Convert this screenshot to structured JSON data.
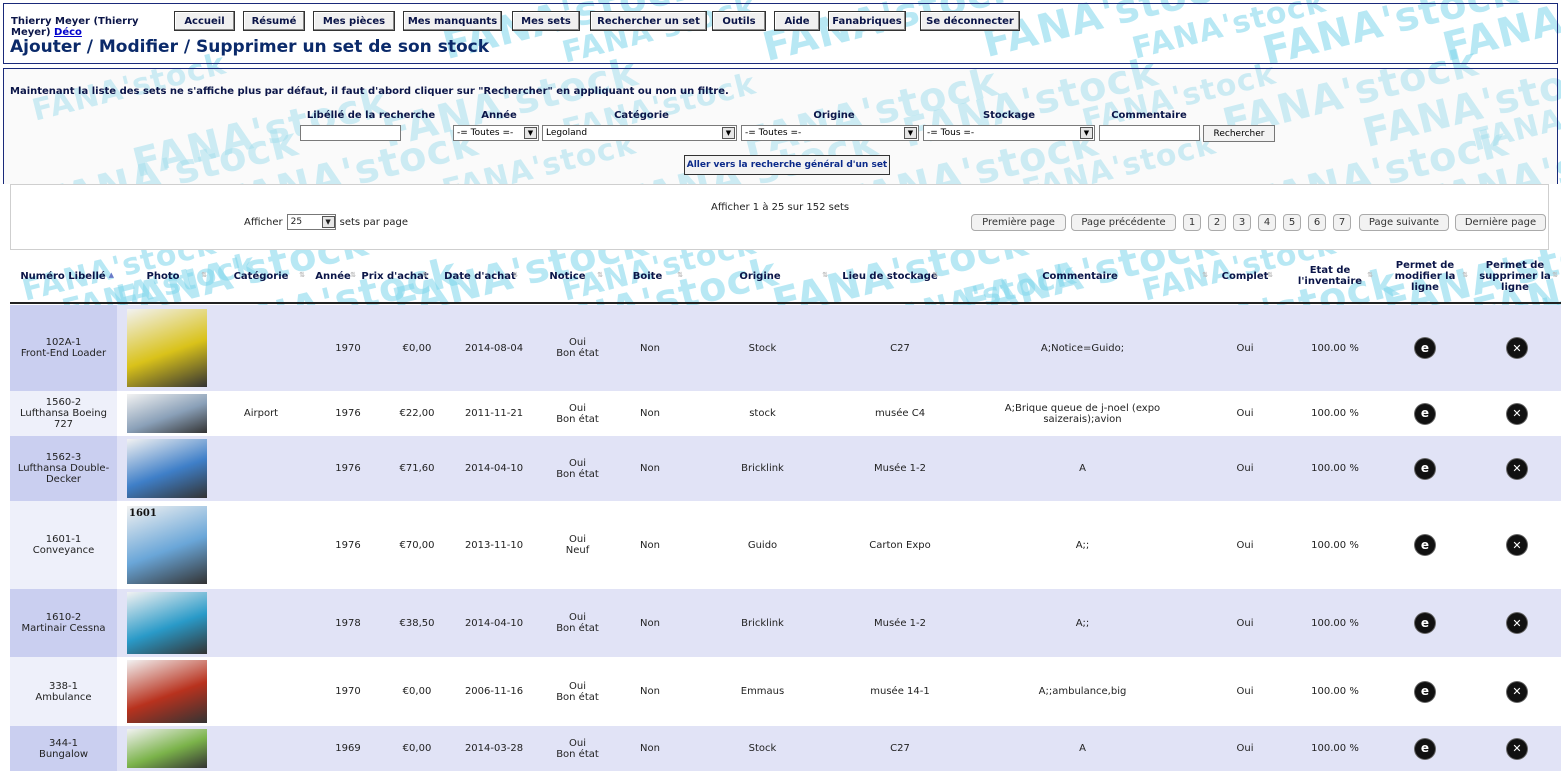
{
  "header": {
    "user_name": "Thierry Meyer (Thierry Meyer)",
    "logout_link": "Déco",
    "page_title": "Ajouter / Modifier / Supprimer un set de son stock"
  },
  "nav": [
    {
      "label": "Accueil"
    },
    {
      "label": "Résumé"
    },
    {
      "label": "Mes pièces"
    },
    {
      "label": "Mes manquants"
    },
    {
      "label": "Mes sets"
    },
    {
      "label": "Rechercher un set"
    },
    {
      "label": "Outils"
    },
    {
      "label": "Aide"
    },
    {
      "label": "Fanabriques"
    },
    {
      "label": "Se déconnecter"
    }
  ],
  "watermark": "FANA'stock",
  "search": {
    "notice": "Maintenant la liste des sets ne s'affiche plus par défaut, il faut d'abord cliquer sur \"Rechercher\" en appliquant ou non un filtre.",
    "labels": {
      "libelle": "Libéllé de la recherche",
      "annee": "Année",
      "categorie": "Catégorie",
      "origine": "Origine",
      "stockage": "Stockage",
      "commentaire": "Commentaire"
    },
    "values": {
      "libelle": "",
      "annee": "-= Toutes =-",
      "categorie": "Legoland",
      "origine": "-= Toutes =-",
      "stockage": "-= Tous =-",
      "commentaire": ""
    },
    "search_button": "Rechercher",
    "general_search_button": "Aller vers la recherche général d'un set"
  },
  "pager": {
    "show_prefix": "Afficher",
    "page_size": "25",
    "show_suffix": "sets par page",
    "info": "Afficher 1 à 25 sur 152 sets",
    "first": "Première page",
    "prev": "Page précédente",
    "pages": [
      "1",
      "2",
      "3",
      "4",
      "5",
      "6",
      "7"
    ],
    "next": "Page suivante",
    "last": "Dernière page"
  },
  "table": {
    "headers": {
      "numero": "Numéro Libellé",
      "photo": "Photo",
      "categorie": "Catégorie",
      "annee": "Année",
      "prix": "Prix d'achat",
      "date": "Date d'achat",
      "notice": "Notice",
      "boite": "Boite",
      "origine": "Origine",
      "lieu": "Lieu de stockage",
      "commentaire": "Commentaire",
      "complet": "Complet",
      "etat": "Etat de l'inventaire",
      "modifier": "Permet de modifier la ligne",
      "supprimer": "Permet de supprimer la ligne"
    },
    "edit_icon": "e",
    "delete_icon": "✕",
    "rows": [
      {
        "num": "102A-1",
        "name": "Front-End Loader",
        "categorie": "",
        "annee": "1970",
        "prix": "€0,00",
        "date": "2014-08-04",
        "notice": "Oui",
        "notice_state": "Bon état",
        "boite": "Non",
        "origine": "Stock",
        "lieu": "C27",
        "commentaire": "A;Notice=Guido;",
        "complet": "Oui",
        "etat": "100.00 %",
        "photo_color": "#d9c21a"
      },
      {
        "num": "1560-2",
        "name": "Lufthansa Boeing 727",
        "categorie": "Airport",
        "annee": "1976",
        "prix": "€22,00",
        "date": "2011-11-21",
        "notice": "Oui",
        "notice_state": "Bon état",
        "boite": "Non",
        "origine": "stock",
        "lieu": "musée C4",
        "commentaire": "A;Brique queue de j-noel (expo saizerais);avion",
        "complet": "Oui",
        "etat": "100.00 %",
        "photo_color": "#8aa0b8"
      },
      {
        "num": "1562-3",
        "name": "Lufthansa Double-Decker",
        "categorie": "",
        "annee": "1976",
        "prix": "€71,60",
        "date": "2014-04-10",
        "notice": "Oui",
        "notice_state": "Bon état",
        "boite": "Non",
        "origine": "Bricklink",
        "lieu": "Musée 1-2",
        "commentaire": "A",
        "complet": "Oui",
        "etat": "100.00 %",
        "photo_color": "#3f7fc8"
      },
      {
        "num": "1601-1",
        "name": "Conveyance",
        "categorie": "",
        "annee": "1976",
        "prix": "€70,00",
        "date": "2013-11-10",
        "notice": "Oui",
        "notice_state": "Neuf",
        "boite": "Non",
        "origine": "Guido",
        "lieu": "Carton Expo",
        "commentaire": "A;;",
        "complet": "Oui",
        "etat": "100.00 %",
        "photo_color": "#6aa6d8",
        "photo_label": "1601"
      },
      {
        "num": "1610-2",
        "name": "Martinair Cessna",
        "categorie": "",
        "annee": "1978",
        "prix": "€38,50",
        "date": "2014-04-10",
        "notice": "Oui",
        "notice_state": "Bon état",
        "boite": "Non",
        "origine": "Bricklink",
        "lieu": "Musée 1-2",
        "commentaire": "A;;",
        "complet": "Oui",
        "etat": "100.00 %",
        "photo_color": "#2a9ac8"
      },
      {
        "num": "338-1",
        "name": "Ambulance",
        "categorie": "",
        "annee": "1970",
        "prix": "€0,00",
        "date": "2006-11-16",
        "notice": "Oui",
        "notice_state": "Bon état",
        "boite": "Non",
        "origine": "Emmaus",
        "lieu": "musée 14-1",
        "commentaire": "A;;ambulance,big",
        "complet": "Oui",
        "etat": "100.00 %",
        "photo_color": "#b8321e"
      },
      {
        "num": "344-1",
        "name": "Bungalow",
        "categorie": "",
        "annee": "1969",
        "prix": "€0,00",
        "date": "2014-03-28",
        "notice": "Oui",
        "notice_state": "Bon état",
        "boite": "Non",
        "origine": "Stock",
        "lieu": "C27",
        "commentaire": "A",
        "complet": "Oui",
        "etat": "100.00 %",
        "photo_color": "#7bb34a"
      }
    ]
  }
}
